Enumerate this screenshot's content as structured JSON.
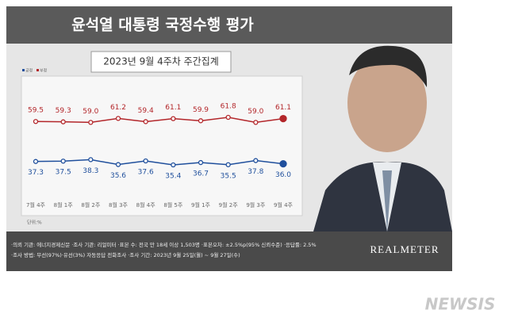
{
  "chart_data": {
    "type": "line",
    "title": "윤석열 대통령 국정수행 평가",
    "subtitle": "2023년 9월 4주차 주간집계",
    "unit": "단위:%",
    "categories": [
      "7월 4주",
      "8월 1주",
      "8월 2주",
      "8월 3주",
      "8월 4주",
      "8월 5주",
      "9월 1주",
      "9월 2주",
      "9월 3주",
      "9월 4주"
    ],
    "series": [
      {
        "name": "부정",
        "color": "#b3262a",
        "values": [
          59.5,
          59.3,
          59.0,
          61.2,
          59.4,
          61.1,
          59.9,
          61.8,
          59.0,
          61.1
        ],
        "value_labels": [
          "59.5",
          "59.3",
          "59.0",
          "61.2",
          "59.4",
          "61.1",
          "59.9",
          "61.8",
          "59.0",
          "61.1"
        ]
      },
      {
        "name": "긍정",
        "color": "#1f4f9c",
        "values": [
          37.3,
          37.5,
          38.3,
          35.6,
          37.6,
          35.4,
          36.7,
          35.5,
          37.8,
          36.0
        ],
        "value_labels": [
          "37.3",
          "37.5",
          "38.3",
          "35.6",
          "37.6",
          "35.4",
          "36.7",
          "35.5",
          "37.8",
          "36.0"
        ]
      }
    ]
  },
  "footer": [
    "·의뢰 기관: 에너지경제신문 ·조사 기관: 리얼미터 ·표본 수: 전국 만 18세 이상 1,503명 ·표본오차: ±2.5%p(95% 신뢰수준) ·응답률: 2.5%",
    "·조사 방법: 무선(97%)·유선(3%) 자동응답 전화조사 ·조사 기간: 2023년 9월 25일(월) ~ 9월 27일(수)"
  ],
  "logo": "REALMETER",
  "watermark": "NEWSIS"
}
